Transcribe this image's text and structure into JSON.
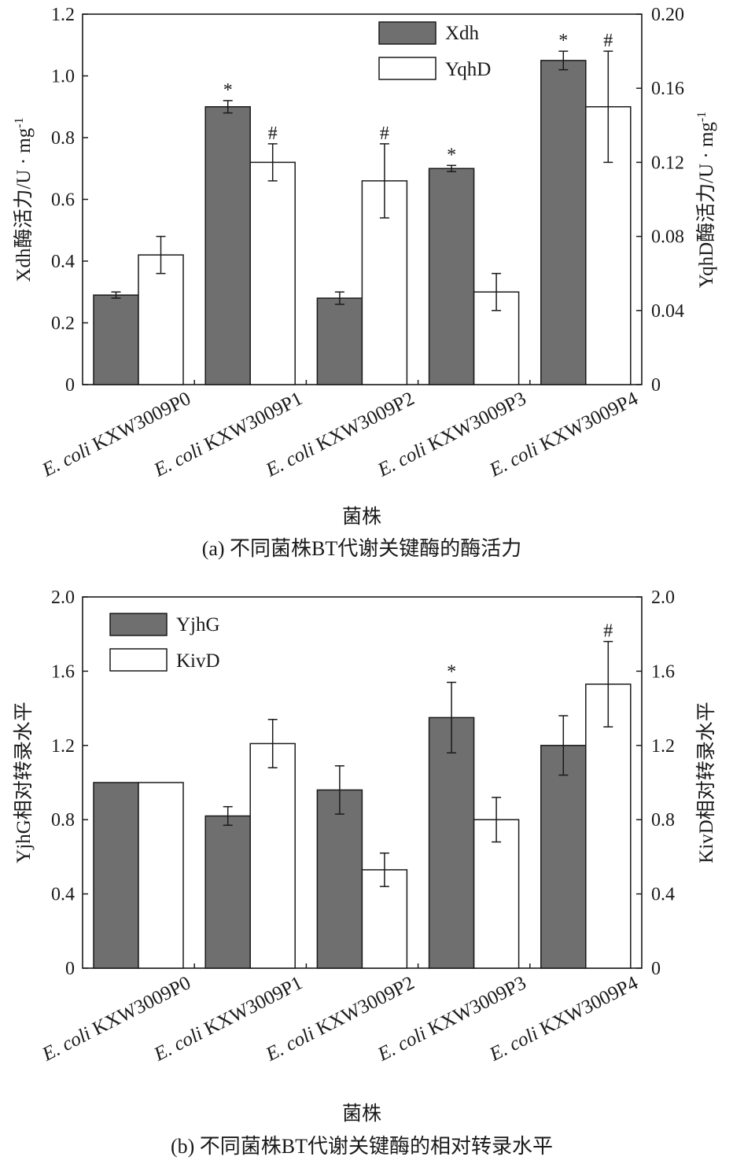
{
  "chart_data": [
    {
      "type": "bar",
      "panel": "a",
      "caption": "(a) 不同菌株BT代谢关键酶的酶活力",
      "categories": [
        "KXW3009P0",
        "KXW3009P1",
        "KXW3009P2",
        "KXW3009P3",
        "KXW3009P4"
      ],
      "category_prefix": "E. coli",
      "xlabel": "菌株",
      "ylabel_left": "Xdh酶活力/U · mg",
      "ylabel_right": "YqhD酶活力/U · mg",
      "ylabel_superscript": "-1",
      "ylim_left": [
        0,
        1.2
      ],
      "ylim_right": [
        0,
        0.2
      ],
      "yticks_left": [
        "0",
        "0.2",
        "0.4",
        "0.6",
        "0.8",
        "1.0",
        "1.2"
      ],
      "yticks_right": [
        "0",
        "0.04",
        "0.08",
        "0.12",
        "0.16",
        "0.20"
      ],
      "series": [
        {
          "name": "Xdh",
          "axis": "left",
          "color": "#6f6f6f",
          "values": [
            0.29,
            0.9,
            0.28,
            0.7,
            1.05
          ],
          "errors": [
            0.01,
            0.02,
            0.02,
            0.01,
            0.03
          ],
          "marks": [
            "",
            "*",
            "",
            "*",
            "*"
          ]
        },
        {
          "name": "YqhD",
          "axis": "right",
          "color": "#ffffff",
          "values": [
            0.07,
            0.12,
            0.11,
            0.05,
            0.15
          ],
          "errors": [
            0.01,
            0.01,
            0.02,
            0.01,
            0.03
          ],
          "marks": [
            "",
            "#",
            "#",
            "",
            "#"
          ]
        }
      ]
    },
    {
      "type": "bar",
      "panel": "b",
      "caption": "(b) 不同菌株BT代谢关键酶的相对转录水平",
      "categories": [
        "KXW3009P0",
        "KXW3009P1",
        "KXW3009P2",
        "KXW3009P3",
        "KXW3009P4"
      ],
      "category_prefix": "E. coli",
      "xlabel": "菌株",
      "ylabel_left": "YjhG相对转录水平",
      "ylabel_right": "KivD相对转录水平",
      "ylim_left": [
        0,
        2.0
      ],
      "ylim_right": [
        0,
        2.0
      ],
      "yticks_left": [
        "0",
        "0.4",
        "0.8",
        "1.2",
        "1.6",
        "2.0"
      ],
      "yticks_right": [
        "0",
        "0.4",
        "0.8",
        "1.2",
        "1.6",
        "2.0"
      ],
      "series": [
        {
          "name": "YjhG",
          "axis": "left",
          "color": "#6f6f6f",
          "values": [
            1.0,
            0.82,
            0.96,
            1.35,
            1.2
          ],
          "errors": [
            0,
            0.05,
            0.13,
            0.19,
            0.16
          ],
          "marks": [
            "",
            "",
            "",
            "*",
            ""
          ]
        },
        {
          "name": "KivD",
          "axis": "right",
          "color": "#ffffff",
          "values": [
            1.0,
            1.21,
            0.53,
            0.8,
            1.53
          ],
          "errors": [
            0,
            0.13,
            0.09,
            0.12,
            0.23
          ],
          "marks": [
            "",
            "",
            "",
            "",
            "#"
          ]
        }
      ]
    }
  ]
}
